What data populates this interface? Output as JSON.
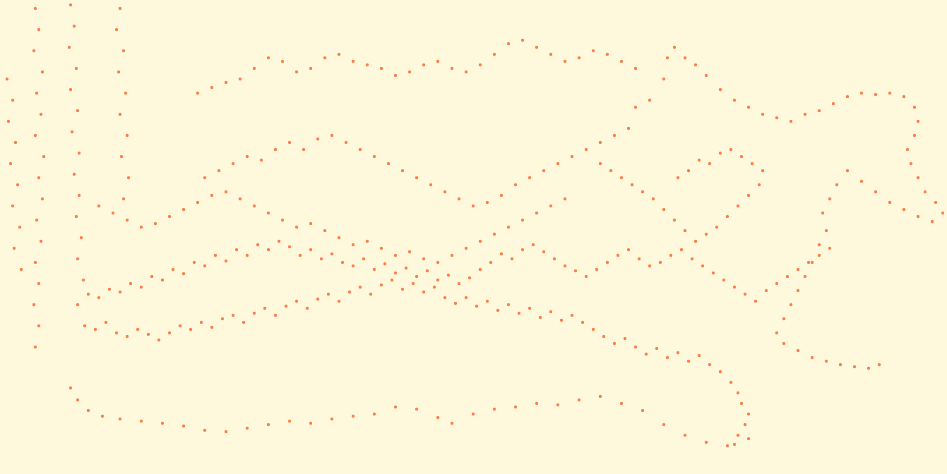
{
  "chart_data": {
    "type": "scatter",
    "color": "#ff7f4a",
    "marker": "circle",
    "tick_labels": false,
    "xlim": [
      0,
      1341
    ],
    "ylim": [
      0,
      672
    ],
    "series": [
      {
        "x": [
          110,
          125,
          140,
          155,
          170,
          185,
          200,
          215,
          230,
          245,
          260,
          275,
          290,
          305,
          320,
          335,
          350,
          365,
          380,
          395,
          410,
          425,
          440,
          455,
          470,
          485,
          500,
          515,
          530,
          545,
          560,
          575,
          590,
          605,
          620,
          635,
          650,
          665,
          680,
          695,
          710,
          725,
          740,
          755,
          770,
          785,
          800,
          815,
          830,
          845,
          860,
          875,
          890,
          905,
          920,
          935,
          950,
          965,
          980,
          995,
          1010,
          1025,
          1040,
          1055,
          1070,
          1085,
          1100,
          1115,
          1130,
          1145,
          1160,
          1175
        ],
        "values": [
          240,
          255,
          250,
          262,
          258,
          270,
          265,
          280,
          275,
          290,
          284,
          300,
          295,
          310,
          302,
          318,
          310,
          325,
          318,
          330,
          322,
          310,
          318,
          305,
          312,
          300,
          295,
          305,
          290,
          298,
          285,
          292,
          280,
          288,
          275,
          282,
          270,
          278,
          290,
          300,
          312,
          305,
          318,
          325,
          315,
          305,
          295,
          288,
          280,
          290,
          300,
          310,
          318,
          305,
          295,
          300,
          310,
          318,
          305,
          295,
          285,
          275,
          265,
          255,
          245,
          260,
          270,
          280,
          290,
          300,
          310,
          320
        ]
      },
      {
        "x": [
          120,
          135,
          150,
          165,
          180,
          195,
          210,
          225,
          240,
          255,
          270,
          285,
          300,
          315,
          330,
          345,
          360,
          375,
          390,
          405,
          420,
          435,
          450,
          465,
          480,
          495,
          510,
          525,
          540,
          555,
          570,
          585,
          600,
          615,
          630,
          645,
          660,
          675,
          690,
          705,
          720,
          735,
          750,
          765,
          780,
          795,
          810,
          825,
          840,
          855,
          870,
          885,
          900,
          915,
          930,
          945,
          960,
          975,
          990,
          1005,
          1020,
          1035,
          1045,
          1050,
          1060,
          1055,
          1045,
          1040
        ],
        "values": [
          210,
          205,
          215,
          200,
          195,
          205,
          198,
          190,
          200,
          210,
          205,
          215,
          208,
          220,
          225,
          215,
          228,
          235,
          225,
          238,
          245,
          235,
          248,
          255,
          245,
          258,
          265,
          255,
          268,
          275,
          262,
          270,
          258,
          265,
          250,
          242,
          250,
          238,
          245,
          232,
          240,
          228,
          235,
          222,
          230,
          218,
          225,
          215,
          205,
          195,
          185,
          192,
          180,
          170,
          178,
          165,
          172,
          160,
          168,
          155,
          145,
          130,
          115,
          100,
          85,
          70,
          55,
          42
        ]
      },
      {
        "x": [
          100,
          110,
          125,
          145,
          170,
          200,
          230,
          260,
          290,
          320,
          350,
          380,
          410,
          440,
          470,
          500,
          530,
          560,
          590,
          620,
          640,
          670,
          700,
          730,
          760,
          790,
          820,
          850,
          880,
          910,
          940,
          970,
          1000,
          1030,
          1060
        ],
        "values": [
          122,
          105,
          90,
          82,
          78,
          75,
          72,
          68,
          62,
          60,
          65,
          70,
          75,
          72,
          78,
          82,
          85,
          95,
          92,
          80,
          72,
          85,
          92,
          95,
          100,
          98,
          105,
          110,
          100,
          90,
          70,
          55,
          45,
          40,
          50
        ]
      },
      {
        "x": [
          280,
          300,
          320,
          340,
          360,
          380,
          400,
          420,
          440,
          460,
          480,
          500,
          520,
          540,
          560,
          580,
          600,
          620,
          640,
          660,
          680,
          700,
          720,
          740,
          760,
          780,
          800,
          820,
          840,
          860,
          880,
          900
        ],
        "values": [
          540,
          548,
          555,
          560,
          575,
          590,
          585,
          570,
          575,
          590,
          595,
          585,
          580,
          575,
          565,
          570,
          580,
          585,
          575,
          570,
          580,
          595,
          610,
          615,
          605,
          595,
          585,
          590,
          600,
          595,
          585,
          575
        ]
      },
      {
        "x": [
          290,
          310,
          330,
          350,
          370,
          390,
          410,
          430,
          450,
          470,
          490,
          510,
          530,
          550,
          570,
          590,
          610,
          630,
          650,
          670,
          690,
          710,
          730,
          750,
          770,
          790,
          810,
          830,
          850,
          870,
          890
        ],
        "values": [
          420,
          430,
          440,
          450,
          445,
          460,
          470,
          460,
          475,
          480,
          470,
          460,
          450,
          440,
          430,
          420,
          410,
          400,
          390,
          380,
          385,
          395,
          410,
          420,
          430,
          440,
          450,
          460,
          470,
          480,
          490
        ]
      },
      {
        "x": [
          50,
          55,
          48,
          60,
          52,
          58,
          50,
          62,
          55,
          60,
          52,
          58,
          50,
          55,
          48,
          55,
          50
        ],
        "values": [
          660,
          630,
          600,
          570,
          540,
          510,
          480,
          450,
          420,
          390,
          360,
          330,
          300,
          270,
          240,
          210,
          180
        ]
      },
      {
        "x": [
          100,
          105,
          98,
          108,
          100,
          110,
          102,
          112,
          105,
          112,
          108,
          115,
          110,
          118
        ],
        "values": [
          665,
          635,
          605,
          575,
          545,
          515,
          485,
          455,
          425,
          395,
          365,
          335,
          305,
          275
        ]
      },
      {
        "x": [
          170,
          165,
          175,
          168,
          178,
          170,
          180,
          172,
          182,
          175
        ],
        "values": [
          660,
          630,
          600,
          570,
          540,
          510,
          480,
          450,
          420,
          390
        ]
      },
      {
        "x": [
          10,
          18,
          12,
          22,
          15,
          25,
          18,
          28,
          20,
          30
        ],
        "values": [
          560,
          530,
          500,
          470,
          440,
          410,
          380,
          350,
          320,
          290
        ]
      },
      {
        "x": [
          900,
          920,
          940,
          945,
          955,
          970,
          985,
          1000,
          1020,
          1040,
          1060,
          1080,
          1100,
          1120,
          1140,
          1160,
          1180,
          1200,
          1220,
          1240,
          1260,
          1280,
          1295,
          1300,
          1295,
          1285,
          1290,
          1300,
          1310,
          1325,
          1335,
          1320,
          1300,
          1280,
          1260,
          1240,
          1220,
          1200,
          1185,
          1175,
          1165,
          1170,
          1160,
          1150,
          1140,
          1130,
          1120,
          1110,
          1100,
          1110,
          1130,
          1150,
          1170,
          1190,
          1210,
          1230,
          1245
        ],
        "values": [
          520,
          530,
          560,
          590,
          605,
          590,
          580,
          565,
          545,
          530,
          520,
          510,
          505,
          500,
          510,
          515,
          525,
          535,
          540,
          538,
          540,
          535,
          520,
          500,
          480,
          460,
          440,
          420,
          400,
          385,
          370,
          358,
          365,
          375,
          385,
          400,
          415,
          430,
          410,
          390,
          370,
          345,
          325,
          300,
          280,
          260,
          240,
          220,
          200,
          185,
          175,
          165,
          160,
          155,
          152,
          150,
          155
        ]
      },
      {
        "x": [
          960,
          975,
          990,
          1005,
          1020,
          1035,
          1050,
          1065,
          1080,
          1075,
          1060,
          1045,
          1030,
          1015,
          1000,
          985,
          970,
          955,
          940,
          925,
          910,
          895,
          880,
          865,
          850
        ],
        "values": [
          420,
          430,
          445,
          440,
          455,
          460,
          450,
          440,
          430,
          410,
          395,
          380,
          365,
          350,
          340,
          330,
          345,
          360,
          375,
          390,
          400,
          410,
          420,
          430,
          440
        ]
      },
      {
        "x": [
          140,
          160,
          180,
          200,
          220,
          240,
          260,
          280,
          300,
          320,
          340,
          360,
          380,
          400,
          420,
          440,
          460,
          480,
          500,
          520,
          540,
          560,
          580,
          600,
          620,
          640,
          660,
          680,
          700,
          720,
          740,
          760,
          780,
          800
        ],
        "values": [
          380,
          370,
          360,
          350,
          355,
          365,
          375,
          385,
          395,
          400,
          390,
          380,
          370,
          360,
          350,
          355,
          345,
          335,
          325,
          330,
          320,
          310,
          315,
          305,
          300,
          310,
          320,
          330,
          340,
          350,
          360,
          370,
          380,
          390
        ]
      }
    ]
  }
}
